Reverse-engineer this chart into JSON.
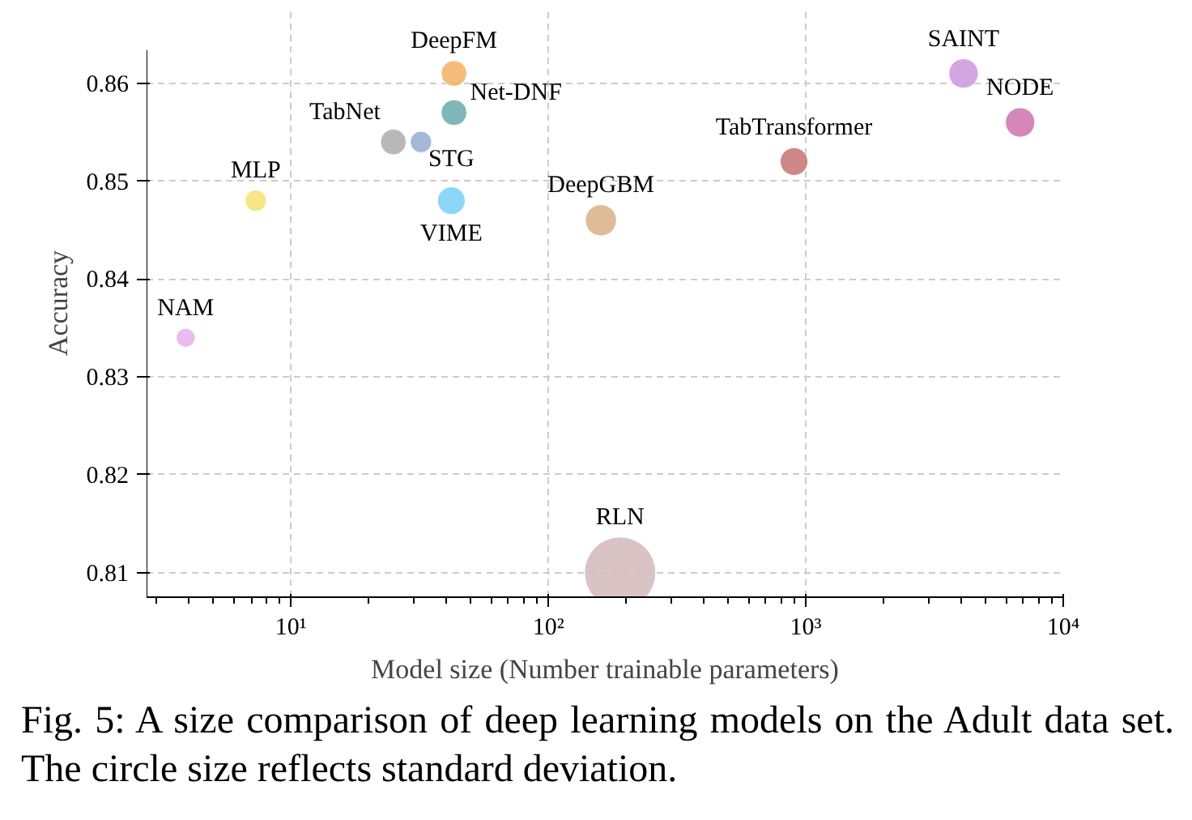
{
  "chart_data": {
    "type": "bubble",
    "xlabel": "Model size (Number trainable parameters)",
    "ylabel": "Accuracy",
    "log": "x",
    "grid": true,
    "xlim": [
      2.75,
      10000
    ],
    "xticks": [
      {
        "value": 10,
        "label": "10¹"
      },
      {
        "value": 100,
        "label": "10²"
      },
      {
        "value": 1000,
        "label": "10³"
      },
      {
        "value": 10000,
        "label": "10⁴"
      }
    ],
    "ylim": [
      0.8075,
      0.8634
    ],
    "yticks": [
      0.81,
      0.82,
      0.83,
      0.84,
      0.85,
      0.86
    ],
    "series": [
      {
        "name": "NAM",
        "color": "#e8b4ec",
        "x": [
          3.9
        ],
        "values": [
          0.834
        ],
        "sizes": [
          0.07
        ]
      },
      {
        "name": "MLP",
        "color": "#f7e27a",
        "x": [
          7.3
        ],
        "values": [
          0.848
        ],
        "sizes": [
          0.09
        ]
      },
      {
        "name": "TabNet",
        "color": "#b0b0b0",
        "x": [
          25
        ],
        "values": [
          0.854
        ],
        "sizes": [
          0.13
        ]
      },
      {
        "name": "STG",
        "color": "#9ab1d3",
        "x": [
          32
        ],
        "values": [
          0.854
        ],
        "sizes": [
          0.09
        ]
      },
      {
        "name": "DeepFM",
        "color": "#f5b56e",
        "x": [
          43
        ],
        "values": [
          0.861
        ],
        "sizes": [
          0.13
        ]
      },
      {
        "name": "Net-DNF",
        "color": "#72aeb0",
        "x": [
          43
        ],
        "values": [
          0.857
        ],
        "sizes": [
          0.13
        ]
      },
      {
        "name": "VIME",
        "color": "#7fd3f7",
        "x": [
          42
        ],
        "values": [
          0.848
        ],
        "sizes": [
          0.15
        ]
      },
      {
        "name": "DeepGBM",
        "color": "#dbb48c",
        "x": [
          160
        ],
        "values": [
          0.846
        ],
        "sizes": [
          0.19
        ]
      },
      {
        "name": "TabTransformer",
        "color": "#c97b78",
        "x": [
          900
        ],
        "values": [
          0.852
        ],
        "sizes": [
          0.15
        ]
      },
      {
        "name": "SAINT",
        "color": "#cf9be0",
        "x": [
          4100
        ],
        "values": [
          0.861
        ],
        "sizes": [
          0.17
        ]
      },
      {
        "name": "NODE",
        "color": "#d07ab4",
        "x": [
          6800
        ],
        "values": [
          0.856
        ],
        "sizes": [
          0.17
        ]
      },
      {
        "name": "RLN",
        "color": "#d6bcbe",
        "x": [
          190
        ],
        "values": [
          0.81
        ],
        "sizes": [
          1
        ]
      }
    ],
    "annotations": [
      "Fig. 5: A size comparison of deep learning models on the Adult data set. The circle size reflects standard deviation."
    ]
  }
}
